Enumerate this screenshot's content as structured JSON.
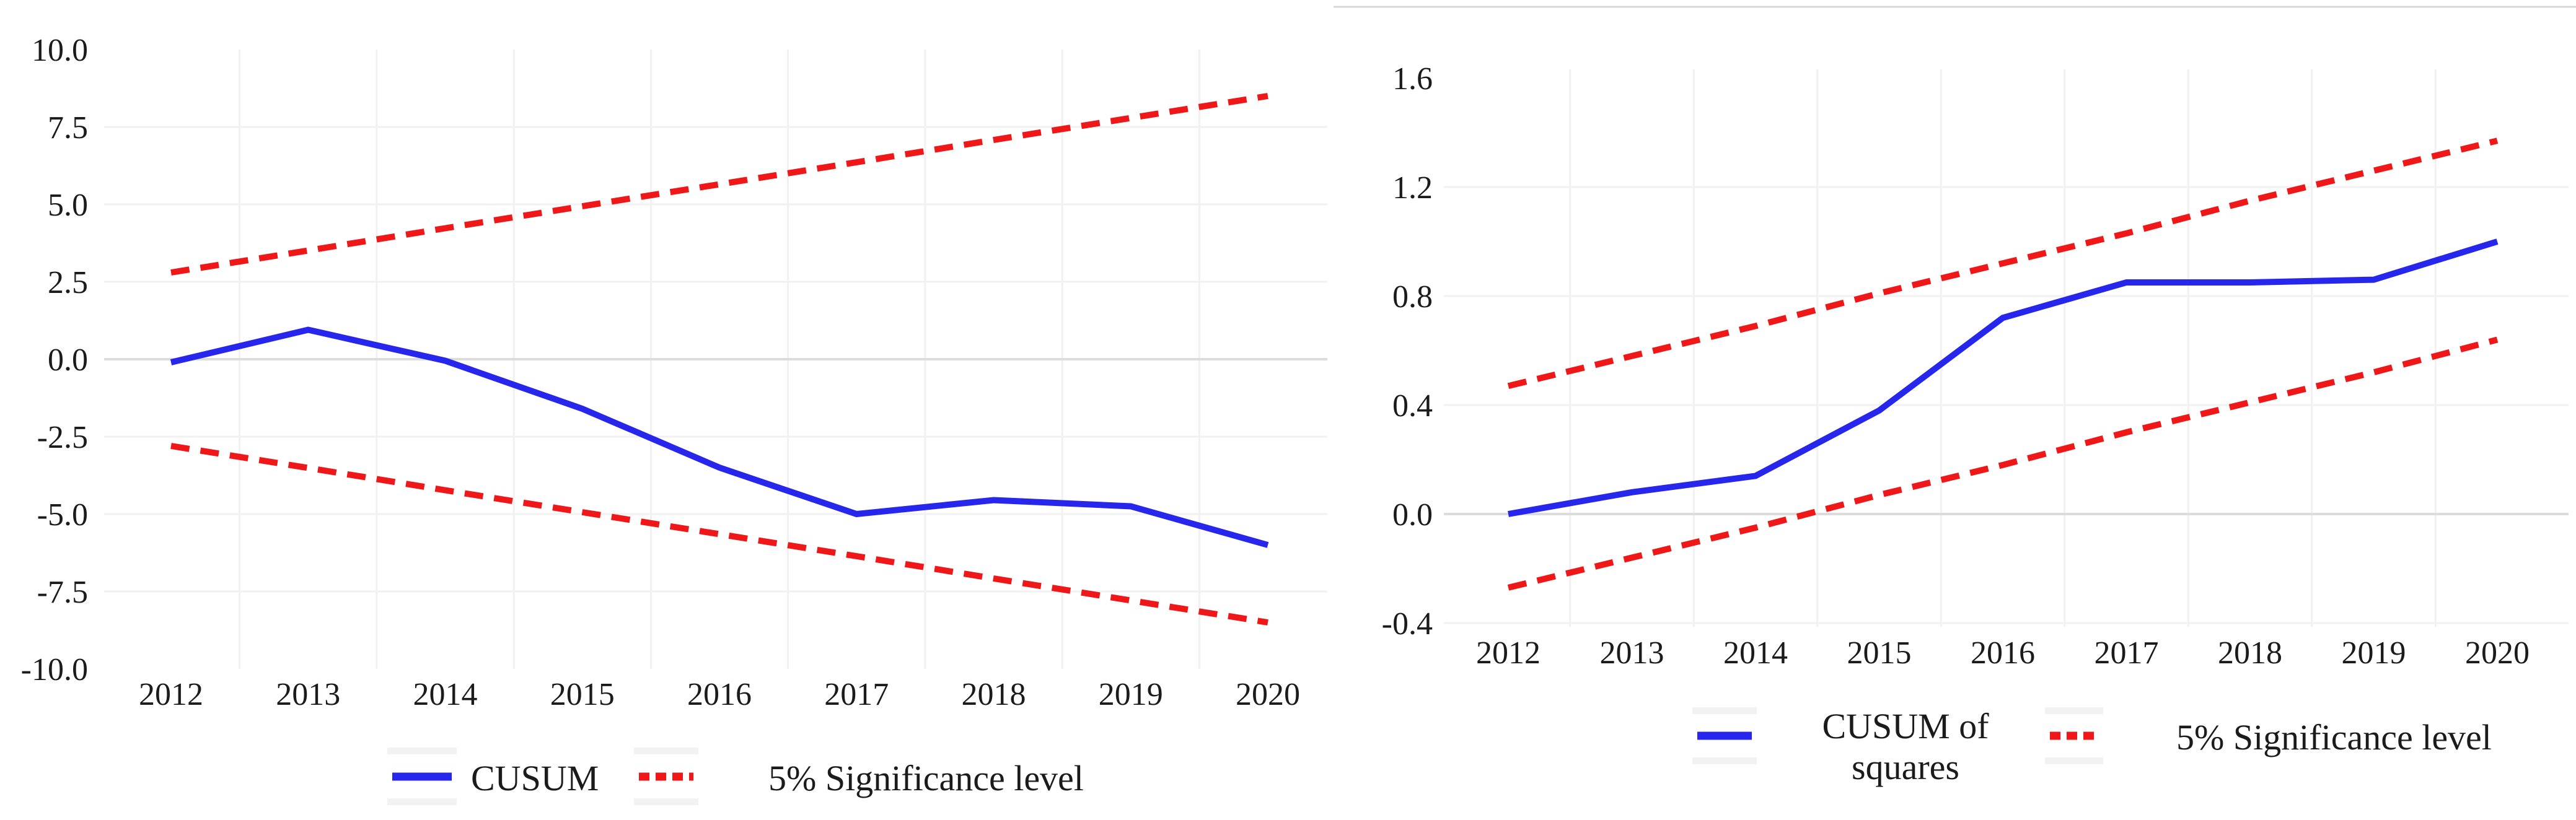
{
  "page": {
    "background": "#ffffff",
    "text_color": "#1b1b1b",
    "grid_color": "#f1f1f1",
    "zero_line_color": "#dcdcdc",
    "top_border_color": "#d8d8d8"
  },
  "chart_data": [
    {
      "id": "cusum",
      "type": "line",
      "title": "",
      "xlabel": "",
      "ylabel": "",
      "x": [
        "2012",
        "2013",
        "2014",
        "2015",
        "2016",
        "2017",
        "2018",
        "2019",
        "2020"
      ],
      "ylim": [
        -10,
        10
      ],
      "yticks": {
        "labels": [
          "10.0",
          "7.5",
          "5.0",
          "2.5",
          "0.0",
          "-2.5",
          "-5.0",
          "-7.5",
          "-10.0"
        ],
        "values": [
          10,
          7.5,
          5,
          2.5,
          0,
          -2.5,
          -5,
          -7.5,
          -10
        ]
      },
      "grid": {
        "horizontal": true,
        "vertical": "year-midpoints",
        "zero_line": true
      },
      "legend_position": "bottom",
      "series": [
        {
          "name": "CUSUM",
          "slug": "cusum-line",
          "color": "#2626ec",
          "dash": false,
          "values": [
            -0.1,
            0.95,
            -0.05,
            -1.6,
            -3.5,
            -5.0,
            -4.55,
            -4.75,
            -6.0
          ]
        },
        {
          "name": "5% Significance level (upper)",
          "slug": "significance-upper-line",
          "color": "#ef1717",
          "dash": true,
          "values": [
            2.8,
            3.51,
            4.23,
            4.94,
            5.65,
            6.36,
            7.08,
            7.79,
            8.5
          ]
        },
        {
          "name": "5% Significance level (lower)",
          "slug": "significance-lower-line",
          "color": "#ef1717",
          "dash": true,
          "values": [
            -2.8,
            -3.51,
            -4.23,
            -4.94,
            -5.65,
            -6.36,
            -7.08,
            -7.79,
            -8.5
          ]
        }
      ],
      "legend": [
        {
          "label": "CUSUM",
          "color": "#2626ec",
          "dash": false
        },
        {
          "label": "5% Significance level",
          "color": "#ef1717",
          "dash": true
        }
      ]
    },
    {
      "id": "cusumsq",
      "type": "line",
      "title": "",
      "xlabel": "",
      "ylabel": "",
      "x": [
        "2012",
        "2013",
        "2014",
        "2015",
        "2016",
        "2017",
        "2018",
        "2019",
        "2020"
      ],
      "ylim": [
        -0.4,
        1.6
      ],
      "yticks": {
        "labels": [
          "1.6",
          "1.2",
          "0.8",
          "0.4",
          "0.0",
          "-0.4"
        ],
        "values": [
          1.6,
          1.2,
          0.8,
          0.4,
          0,
          -0.4
        ]
      },
      "grid": {
        "horizontal": true,
        "vertical": "year-midpoints",
        "zero_line": true,
        "top_border": true
      },
      "legend_position": "bottom",
      "series": [
        {
          "name": "CUSUM of squares",
          "slug": "cusum-of-squares-line",
          "color": "#2626ec",
          "dash": false,
          "values": [
            0.0,
            0.08,
            0.14,
            0.38,
            0.72,
            0.85,
            0.85,
            0.86,
            1.0
          ]
        },
        {
          "name": "5% Significance level (upper)",
          "slug": "significance-upper-line",
          "color": "#ef1717",
          "dash": true,
          "values": [
            0.47,
            0.58,
            0.69,
            0.81,
            0.92,
            1.03,
            1.15,
            1.26,
            1.37
          ]
        },
        {
          "name": "5% Significance level (lower)",
          "slug": "significance-lower-line",
          "color": "#ef1717",
          "dash": true,
          "values": [
            -0.27,
            -0.16,
            -0.05,
            0.07,
            0.18,
            0.3,
            0.41,
            0.52,
            0.64
          ]
        }
      ],
      "legend": [
        {
          "label": "CUSUM of\nsquares",
          "color": "#2626ec",
          "dash": false
        },
        {
          "label": "5% Significance level",
          "color": "#ef1717",
          "dash": true
        }
      ]
    }
  ]
}
